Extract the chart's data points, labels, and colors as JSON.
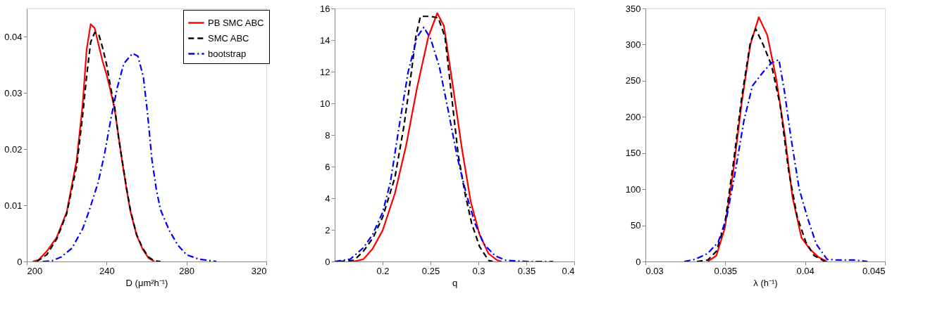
{
  "chart_data": [
    {
      "type": "line",
      "xlabel": "D (μm²h⁻¹)",
      "xlim": [
        200,
        320
      ],
      "xticks": [
        200,
        240,
        280,
        320
      ],
      "ylim": [
        0,
        0.045
      ],
      "yticks": [
        0,
        0.01,
        0.02,
        0.03,
        0.04
      ],
      "grid": false,
      "legend": "top right",
      "marker": "none",
      "series": [
        {
          "name": "PB SMC ABC",
          "color": "#ff0000",
          "line_style": "solid",
          "x": [
            203,
            206,
            210,
            215,
            220,
            225,
            228,
            230,
            232,
            234,
            236,
            238,
            240,
            242,
            244,
            246,
            248,
            250,
            252,
            255,
            258,
            261,
            264
          ],
          "values": [
            0,
            0.0003,
            0.0018,
            0.0043,
            0.0088,
            0.018,
            0.028,
            0.0377,
            0.0422,
            0.0415,
            0.0385,
            0.0356,
            0.0332,
            0.0303,
            0.0271,
            0.0222,
            0.0173,
            0.0128,
            0.0088,
            0.0047,
            0.0022,
            0.0006,
            0
          ]
        },
        {
          "name": "SMC ABC",
          "color": "#000000",
          "line_style": "dashed",
          "x": [
            205,
            210,
            215,
            220,
            225,
            228,
            230,
            232,
            234,
            236,
            238,
            240,
            242,
            244,
            246,
            248,
            250,
            252,
            255,
            258,
            261,
            264,
            267
          ],
          "values": [
            0,
            0.0012,
            0.004,
            0.0085,
            0.017,
            0.026,
            0.033,
            0.039,
            0.0407,
            0.0405,
            0.038,
            0.035,
            0.031,
            0.0275,
            0.022,
            0.0175,
            0.013,
            0.009,
            0.0048,
            0.0024,
            0.0008,
            0.0001,
            0
          ]
        },
        {
          "name": "bootstrap",
          "color": "#0000ff",
          "line_style": "dashdot",
          "x": [
            208,
            212.4,
            217.3,
            222.7,
            228.1,
            231.4,
            235.7,
            238.9,
            242.2,
            245.4,
            248.6,
            253,
            255.7,
            258.4,
            260.5,
            262.7,
            264.9,
            267,
            271.4,
            275.7,
            280,
            286.5,
            295
          ],
          "values": [
            0,
            0.0001,
            0.0008,
            0.0024,
            0.0059,
            0.0092,
            0.014,
            0.019,
            0.0255,
            0.031,
            0.0352,
            0.037,
            0.0365,
            0.0328,
            0.0263,
            0.0181,
            0.0128,
            0.0092,
            0.0055,
            0.0029,
            0.0012,
            0.0004,
            0
          ]
        }
      ]
    },
    {
      "type": "line",
      "xlabel": "q",
      "xlim": [
        0.15,
        0.4
      ],
      "xticks": [
        0.2,
        0.25,
        0.3,
        0.35,
        0.4
      ],
      "ylim": [
        0,
        16
      ],
      "yticks": [
        0,
        2,
        4,
        6,
        8,
        10,
        12,
        14,
        16
      ],
      "grid": false,
      "legend": false,
      "marker": "none",
      "series": [
        {
          "color": "#ff0000",
          "line_style": "solid",
          "x": [
            0.17,
            0.18,
            0.1895,
            0.2,
            0.2128,
            0.2244,
            0.236,
            0.2477,
            0.257,
            0.264,
            0.2733,
            0.2826,
            0.2919,
            0.3012,
            0.3105,
            0.3198,
            0.3244
          ],
          "values": [
            0,
            0.15,
            0.8,
            1.96,
            4.3,
            7.3,
            11,
            14.2,
            15.7,
            14.9,
            11.1,
            7.2,
            3.8,
            1.7,
            0.5,
            0.07,
            0
          ]
        },
        {
          "color": "#000000",
          "line_style": "dashed",
          "x": [
            0.1547,
            0.17,
            0.18,
            0.19,
            0.2,
            0.2128,
            0.2221,
            0.229,
            0.2349,
            0.2395,
            0.25,
            0.2581,
            0.2651,
            0.2721,
            0.279,
            0.286,
            0.293,
            0.3012,
            0.3105,
            0.3151
          ],
          "values": [
            0,
            0.07,
            0.65,
            1.5,
            2.8,
            5.3,
            8.5,
            11.5,
            14.3,
            15.5,
            15.5,
            15.4,
            14.2,
            10.4,
            6.7,
            4.3,
            2.4,
            0.94,
            0.07,
            0
          ]
        },
        {
          "color": "#0000ff",
          "line_style": "dashdot",
          "x": [
            0.15,
            0.1663,
            0.18,
            0.1895,
            0.2,
            0.2081,
            0.2174,
            0.2267,
            0.236,
            0.243,
            0.25,
            0.2593,
            0.2686,
            0.2779,
            0.2872,
            0.2965,
            0.3058,
            0.3174,
            0.329,
            0.3523,
            0.3779
          ],
          "values": [
            0,
            0.15,
            0.87,
            1.7,
            3.1,
            5,
            8.6,
            12,
            14.2,
            14.8,
            14.1,
            12.3,
            9.5,
            6.6,
            4.3,
            2.4,
            1.1,
            0.36,
            0.07,
            0,
            0
          ]
        }
      ]
    },
    {
      "type": "line",
      "xlabel": "λ (h⁻¹)",
      "xlim": [
        0.03,
        0.045
      ],
      "xticks": [
        0.03,
        0.035,
        0.04,
        0.045
      ],
      "ylim": [
        0,
        350
      ],
      "yticks": [
        0,
        50,
        100,
        150,
        200,
        250,
        300,
        350
      ],
      "grid": false,
      "legend": false,
      "marker": "none",
      "series": [
        {
          "color": "#ff0000",
          "line_style": "solid",
          "x": [
            0.0339,
            0.03444,
            0.03497,
            0.0355,
            0.03603,
            0.03657,
            0.0371,
            0.03763,
            0.03817,
            0.0387,
            0.0392,
            0.03977,
            0.0403,
            0.04084,
            0.04137
          ],
          "values": [
            0,
            8,
            46,
            125,
            220,
            300,
            338,
            313,
            255,
            179,
            90,
            33,
            17,
            6,
            0
          ]
        },
        {
          "color": "#000000",
          "line_style": "dashed",
          "x": [
            0.03323,
            0.0339,
            0.03444,
            0.03497,
            0.0355,
            0.03603,
            0.03657,
            0.0369,
            0.03737,
            0.0379,
            0.03843,
            0.03897,
            0.0395,
            0.04004,
            0.04057,
            0.04124
          ],
          "values": [
            0,
            2,
            14,
            52,
            135,
            227,
            303,
            322,
            300,
            271,
            217,
            125,
            62,
            27,
            8,
            0
          ]
        },
        {
          "color": "#0000ff",
          "line_style": "dashdot",
          "x": [
            0.03243,
            0.0331,
            0.0339,
            0.03456,
            0.0351,
            0.03563,
            0.03617,
            0.0367,
            0.03737,
            0.0379,
            0.03836,
            0.0387,
            0.0391,
            0.03963,
            0.04017,
            0.0407,
            0.04137,
            0.04204,
            0.0431,
            0.0439
          ],
          "values": [
            0,
            3,
            11,
            27,
            62,
            125,
            195,
            243,
            262,
            275,
            279,
            236,
            173,
            100,
            59,
            24,
            3,
            2,
            2,
            0
          ]
        }
      ]
    }
  ]
}
